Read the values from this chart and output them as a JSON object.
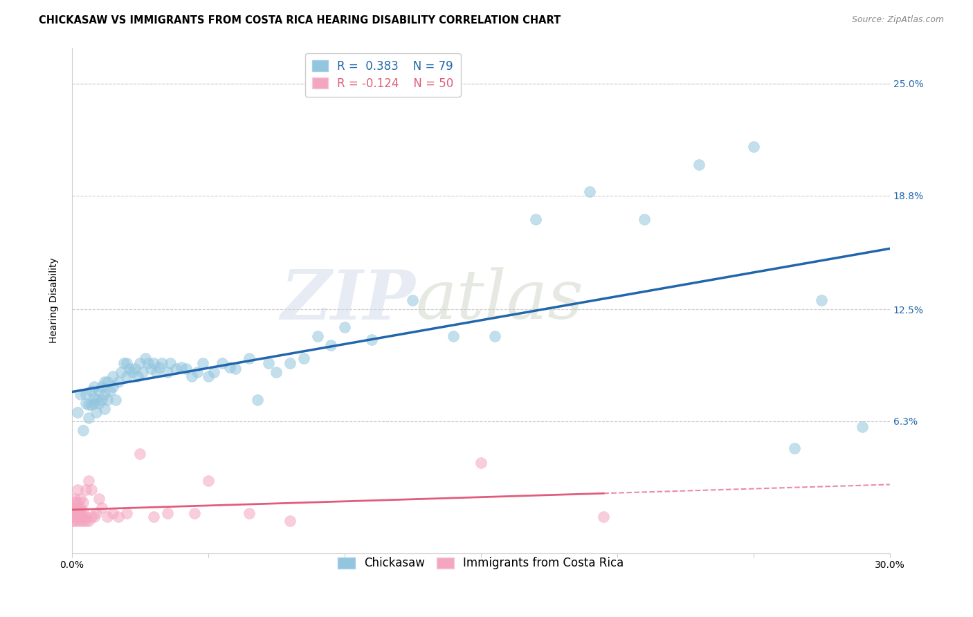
{
  "title": "CHICKASAW VS IMMIGRANTS FROM COSTA RICA HEARING DISABILITY CORRELATION CHART",
  "source": "Source: ZipAtlas.com",
  "ylabel": "Hearing Disability",
  "ytick_labels": [
    "25.0%",
    "18.8%",
    "12.5%",
    "6.3%"
  ],
  "ytick_values": [
    0.25,
    0.188,
    0.125,
    0.063
  ],
  "xlim": [
    0.0,
    0.3
  ],
  "ylim": [
    -0.01,
    0.27
  ],
  "R_blue": 0.383,
  "N_blue": 79,
  "R_pink": -0.124,
  "N_pink": 50,
  "blue_color": "#92c5de",
  "pink_color": "#f4a6c0",
  "blue_line_color": "#2166ac",
  "pink_line_color": "#e05c7a",
  "legend_blue_label": "Chickasaw",
  "legend_pink_label": "Immigrants from Costa Rica",
  "watermark_zip": "ZIP",
  "watermark_atlas": "atlas",
  "blue_x": [
    0.002,
    0.003,
    0.004,
    0.005,
    0.005,
    0.006,
    0.006,
    0.007,
    0.007,
    0.008,
    0.008,
    0.008,
    0.009,
    0.009,
    0.01,
    0.01,
    0.011,
    0.011,
    0.012,
    0.012,
    0.012,
    0.013,
    0.013,
    0.014,
    0.015,
    0.015,
    0.016,
    0.017,
    0.018,
    0.019,
    0.02,
    0.02,
    0.021,
    0.022,
    0.023,
    0.024,
    0.025,
    0.026,
    0.027,
    0.028,
    0.029,
    0.03,
    0.031,
    0.032,
    0.033,
    0.035,
    0.036,
    0.038,
    0.04,
    0.042,
    0.044,
    0.046,
    0.048,
    0.05,
    0.052,
    0.055,
    0.058,
    0.06,
    0.065,
    0.068,
    0.072,
    0.075,
    0.08,
    0.085,
    0.09,
    0.095,
    0.1,
    0.11,
    0.125,
    0.14,
    0.155,
    0.17,
    0.19,
    0.21,
    0.23,
    0.25,
    0.265,
    0.275,
    0.29
  ],
  "blue_y": [
    0.068,
    0.078,
    0.058,
    0.073,
    0.078,
    0.065,
    0.072,
    0.072,
    0.08,
    0.073,
    0.076,
    0.082,
    0.068,
    0.075,
    0.073,
    0.08,
    0.075,
    0.082,
    0.07,
    0.078,
    0.085,
    0.075,
    0.085,
    0.08,
    0.082,
    0.088,
    0.075,
    0.085,
    0.09,
    0.095,
    0.088,
    0.095,
    0.092,
    0.09,
    0.092,
    0.088,
    0.095,
    0.09,
    0.098,
    0.095,
    0.092,
    0.095,
    0.09,
    0.093,
    0.095,
    0.09,
    0.095,
    0.092,
    0.093,
    0.092,
    0.088,
    0.09,
    0.095,
    0.088,
    0.09,
    0.095,
    0.093,
    0.092,
    0.098,
    0.075,
    0.095,
    0.09,
    0.095,
    0.098,
    0.11,
    0.105,
    0.115,
    0.108,
    0.13,
    0.11,
    0.11,
    0.175,
    0.19,
    0.175,
    0.205,
    0.215,
    0.048,
    0.13,
    0.06
  ],
  "pink_x": [
    0.0,
    0.0,
    0.0,
    0.0,
    0.001,
    0.001,
    0.001,
    0.001,
    0.001,
    0.001,
    0.001,
    0.002,
    0.002,
    0.002,
    0.002,
    0.002,
    0.002,
    0.003,
    0.003,
    0.003,
    0.003,
    0.003,
    0.004,
    0.004,
    0.004,
    0.004,
    0.005,
    0.005,
    0.005,
    0.006,
    0.006,
    0.007,
    0.007,
    0.008,
    0.009,
    0.01,
    0.011,
    0.013,
    0.015,
    0.017,
    0.02,
    0.025,
    0.03,
    0.035,
    0.045,
    0.05,
    0.065,
    0.08,
    0.15,
    0.195
  ],
  "pink_y": [
    0.008,
    0.01,
    0.012,
    0.015,
    0.008,
    0.01,
    0.012,
    0.013,
    0.015,
    0.018,
    0.02,
    0.008,
    0.01,
    0.012,
    0.015,
    0.018,
    0.025,
    0.008,
    0.01,
    0.012,
    0.015,
    0.02,
    0.008,
    0.01,
    0.013,
    0.018,
    0.008,
    0.01,
    0.025,
    0.008,
    0.03,
    0.01,
    0.025,
    0.01,
    0.012,
    0.02,
    0.015,
    0.01,
    0.012,
    0.01,
    0.012,
    0.045,
    0.01,
    0.012,
    0.012,
    0.03,
    0.012,
    0.008,
    0.04,
    0.01
  ],
  "grid_color": "#cccccc",
  "background_color": "#ffffff",
  "title_fontsize": 10.5,
  "axis_fontsize": 10,
  "legend_fontsize": 12
}
